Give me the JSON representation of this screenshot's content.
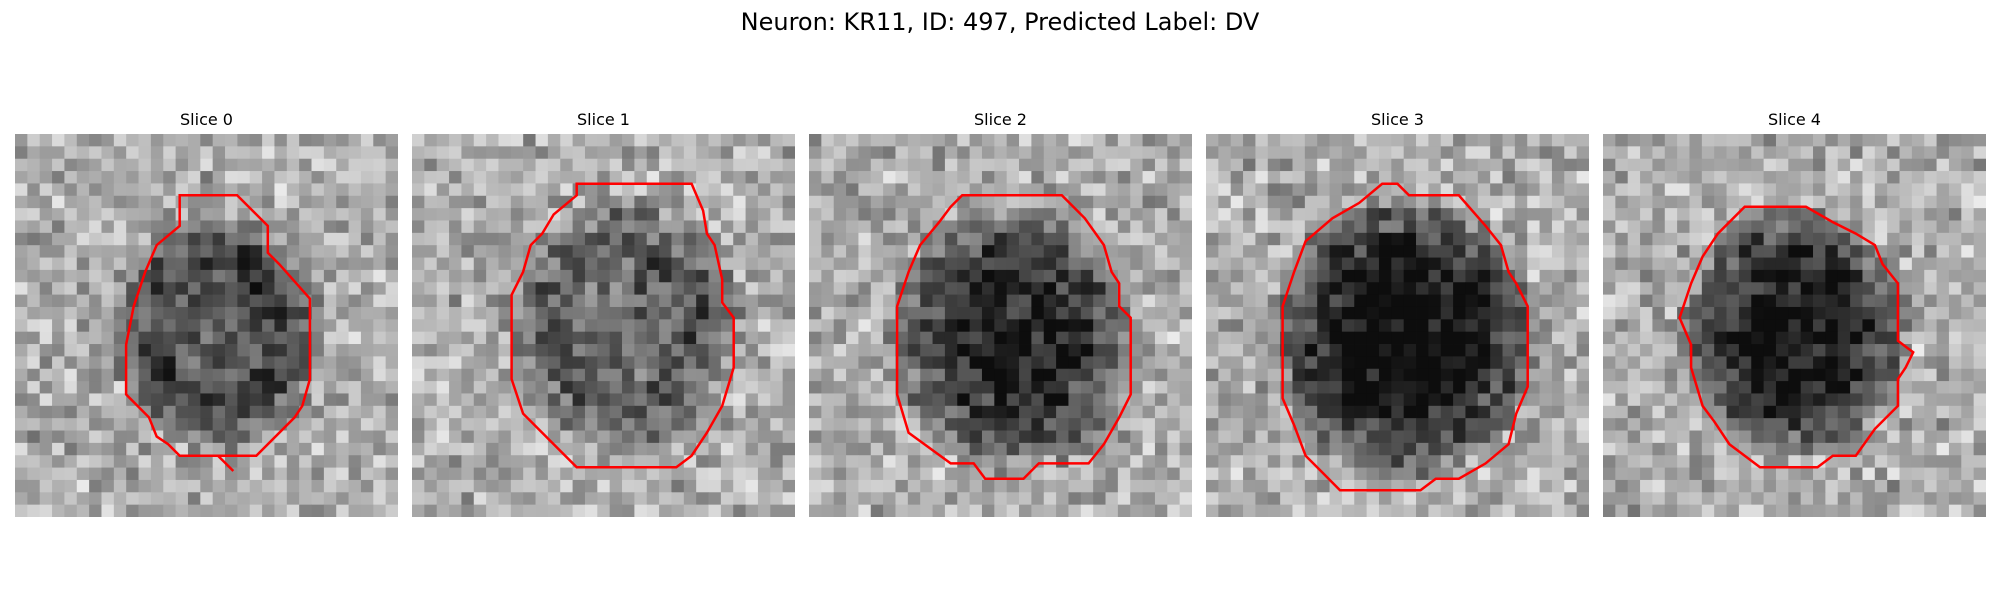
{
  "figure": {
    "title": "Neuron: KR11, ID: 497, Predicted Label: DV",
    "contour_color": "#ff0000"
  },
  "panels": [
    {
      "title": "Slice 0",
      "contour_fraction": [
        [
          0.43,
          0.16
        ],
        [
          0.58,
          0.16
        ],
        [
          0.66,
          0.24
        ],
        [
          0.66,
          0.31
        ],
        [
          0.69,
          0.34
        ],
        [
          0.77,
          0.43
        ],
        [
          0.77,
          0.64
        ],
        [
          0.75,
          0.71
        ],
        [
          0.73,
          0.74
        ],
        [
          0.63,
          0.84
        ],
        [
          0.53,
          0.84
        ],
        [
          0.57,
          0.88
        ],
        [
          0.53,
          0.84
        ],
        [
          0.43,
          0.84
        ],
        [
          0.4,
          0.81
        ],
        [
          0.37,
          0.79
        ],
        [
          0.35,
          0.74
        ],
        [
          0.29,
          0.68
        ],
        [
          0.29,
          0.55
        ],
        [
          0.31,
          0.45
        ],
        [
          0.34,
          0.36
        ],
        [
          0.37,
          0.29
        ],
        [
          0.43,
          0.24
        ]
      ]
    },
    {
      "title": "Slice 1",
      "contour_fraction": [
        [
          0.43,
          0.13
        ],
        [
          0.73,
          0.13
        ],
        [
          0.76,
          0.2
        ],
        [
          0.77,
          0.26
        ],
        [
          0.79,
          0.29
        ],
        [
          0.81,
          0.38
        ],
        [
          0.81,
          0.44
        ],
        [
          0.84,
          0.48
        ],
        [
          0.84,
          0.61
        ],
        [
          0.81,
          0.71
        ],
        [
          0.77,
          0.78
        ],
        [
          0.73,
          0.84
        ],
        [
          0.69,
          0.87
        ],
        [
          0.43,
          0.87
        ],
        [
          0.37,
          0.81
        ],
        [
          0.29,
          0.73
        ],
        [
          0.26,
          0.64
        ],
        [
          0.26,
          0.42
        ],
        [
          0.29,
          0.36
        ],
        [
          0.31,
          0.29
        ],
        [
          0.34,
          0.26
        ],
        [
          0.37,
          0.21
        ],
        [
          0.43,
          0.16
        ]
      ]
    },
    {
      "title": "Slice 2",
      "contour_fraction": [
        [
          0.4,
          0.16
        ],
        [
          0.66,
          0.16
        ],
        [
          0.72,
          0.22
        ],
        [
          0.77,
          0.29
        ],
        [
          0.79,
          0.36
        ],
        [
          0.81,
          0.39
        ],
        [
          0.81,
          0.45
        ],
        [
          0.84,
          0.48
        ],
        [
          0.84,
          0.68
        ],
        [
          0.81,
          0.74
        ],
        [
          0.77,
          0.81
        ],
        [
          0.73,
          0.86
        ],
        [
          0.6,
          0.86
        ],
        [
          0.56,
          0.9
        ],
        [
          0.46,
          0.9
        ],
        [
          0.43,
          0.86
        ],
        [
          0.37,
          0.86
        ],
        [
          0.26,
          0.78
        ],
        [
          0.23,
          0.68
        ],
        [
          0.23,
          0.45
        ],
        [
          0.26,
          0.36
        ],
        [
          0.29,
          0.29
        ],
        [
          0.34,
          0.23
        ],
        [
          0.37,
          0.19
        ]
      ]
    },
    {
      "title": "Slice 3",
      "contour_fraction": [
        [
          0.46,
          0.13
        ],
        [
          0.5,
          0.13
        ],
        [
          0.53,
          0.16
        ],
        [
          0.66,
          0.16
        ],
        [
          0.73,
          0.24
        ],
        [
          0.77,
          0.29
        ],
        [
          0.79,
          0.36
        ],
        [
          0.81,
          0.39
        ],
        [
          0.84,
          0.45
        ],
        [
          0.84,
          0.66
        ],
        [
          0.81,
          0.73
        ],
        [
          0.79,
          0.81
        ],
        [
          0.73,
          0.86
        ],
        [
          0.66,
          0.9
        ],
        [
          0.6,
          0.9
        ],
        [
          0.56,
          0.93
        ],
        [
          0.35,
          0.93
        ],
        [
          0.3,
          0.88
        ],
        [
          0.26,
          0.84
        ],
        [
          0.23,
          0.76
        ],
        [
          0.2,
          0.69
        ],
        [
          0.2,
          0.45
        ],
        [
          0.23,
          0.36
        ],
        [
          0.26,
          0.28
        ],
        [
          0.33,
          0.22
        ],
        [
          0.4,
          0.18
        ]
      ]
    },
    {
      "title": "Slice 4",
      "contour_fraction": [
        [
          0.37,
          0.19
        ],
        [
          0.53,
          0.19
        ],
        [
          0.6,
          0.23
        ],
        [
          0.66,
          0.26
        ],
        [
          0.71,
          0.29
        ],
        [
          0.73,
          0.34
        ],
        [
          0.77,
          0.39
        ],
        [
          0.77,
          0.54
        ],
        [
          0.81,
          0.57
        ],
        [
          0.79,
          0.61
        ],
        [
          0.77,
          0.64
        ],
        [
          0.77,
          0.71
        ],
        [
          0.71,
          0.77
        ],
        [
          0.66,
          0.84
        ],
        [
          0.6,
          0.84
        ],
        [
          0.56,
          0.87
        ],
        [
          0.41,
          0.87
        ],
        [
          0.37,
          0.84
        ],
        [
          0.33,
          0.81
        ],
        [
          0.29,
          0.75
        ],
        [
          0.26,
          0.71
        ],
        [
          0.23,
          0.61
        ],
        [
          0.23,
          0.55
        ],
        [
          0.2,
          0.48
        ],
        [
          0.23,
          0.39
        ],
        [
          0.26,
          0.32
        ],
        [
          0.3,
          0.26
        ]
      ]
    }
  ]
}
